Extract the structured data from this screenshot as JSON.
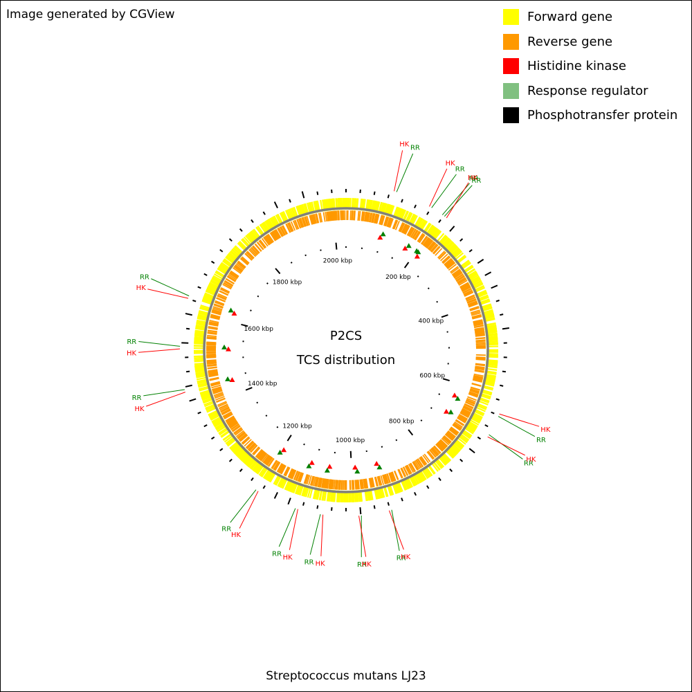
{
  "credit": "Image generated by CGView",
  "center": {
    "line1": "P2CS",
    "line2": "TCS distribution"
  },
  "genome_name": "Streptococcus mutans LJ23",
  "legend": [
    {
      "label": "Forward gene",
      "color": "#ffff00"
    },
    {
      "label": "Reverse gene",
      "color": "#ff9900"
    },
    {
      "label": "Histidine kinase",
      "color": "#ff0000"
    },
    {
      "label": "Response regulator",
      "color": "#80c080"
    },
    {
      "label": "Phosphotransfer protein",
      "color": "#000000"
    }
  ],
  "colors": {
    "forward": "#ffff00",
    "reverse": "#ff9900",
    "hk": "#ff0000",
    "rr": "#008000",
    "backbone": "#7f7f7f"
  },
  "genome_kbp": 2030,
  "scale_labels": [
    "200 kbp",
    "400 kbp",
    "600 kbp",
    "800 kbp",
    "1000 kbp",
    "1200 kbp",
    "1400 kbp",
    "1600 kbp",
    "1800 kbp",
    "2000 kbp"
  ],
  "features": [
    {
      "label": "HK",
      "type": "hk",
      "kbp": 95
    },
    {
      "label": "RR",
      "type": "rr",
      "kbp": 100
    },
    {
      "label": "HK",
      "type": "hk",
      "kbp": 170
    },
    {
      "label": "RR",
      "type": "rr",
      "kbp": 175
    },
    {
      "label": "RR",
      "type": "rr",
      "kbp": 200
    },
    {
      "label": "RR",
      "type": "rr",
      "kbp": 205
    },
    {
      "label": "HK",
      "type": "hk",
      "kbp": 210
    },
    {
      "label": "HK",
      "type": "hk",
      "kbp": 635
    },
    {
      "label": "RR",
      "type": "rr",
      "kbp": 640
    },
    {
      "label": "RR",
      "type": "rr",
      "kbp": 680
    },
    {
      "label": "HK",
      "type": "hk",
      "kbp": 685
    },
    {
      "label": "RR",
      "type": "rr",
      "kbp": 925
    },
    {
      "label": "HK",
      "type": "hk",
      "kbp": 930
    },
    {
      "label": "RR",
      "type": "rr",
      "kbp": 985
    },
    {
      "label": "HK",
      "type": "hk",
      "kbp": 990
    },
    {
      "label": "HK",
      "type": "hk",
      "kbp": 1060
    },
    {
      "label": "RR",
      "type": "rr",
      "kbp": 1065
    },
    {
      "label": "HK",
      "type": "hk",
      "kbp": 1110
    },
    {
      "label": "RR",
      "type": "rr",
      "kbp": 1115
    },
    {
      "label": "HK",
      "type": "hk",
      "kbp": 1195
    },
    {
      "label": "RR",
      "type": "rr",
      "kbp": 1200
    },
    {
      "label": "HK",
      "type": "hk",
      "kbp": 1440
    },
    {
      "label": "RR",
      "type": "rr",
      "kbp": 1445
    },
    {
      "label": "HK",
      "type": "hk",
      "kbp": 1525
    },
    {
      "label": "RR",
      "type": "rr",
      "kbp": 1530
    },
    {
      "label": "HK",
      "type": "hk",
      "kbp": 1625
    },
    {
      "label": "RR",
      "type": "rr",
      "kbp": 1630
    }
  ]
}
